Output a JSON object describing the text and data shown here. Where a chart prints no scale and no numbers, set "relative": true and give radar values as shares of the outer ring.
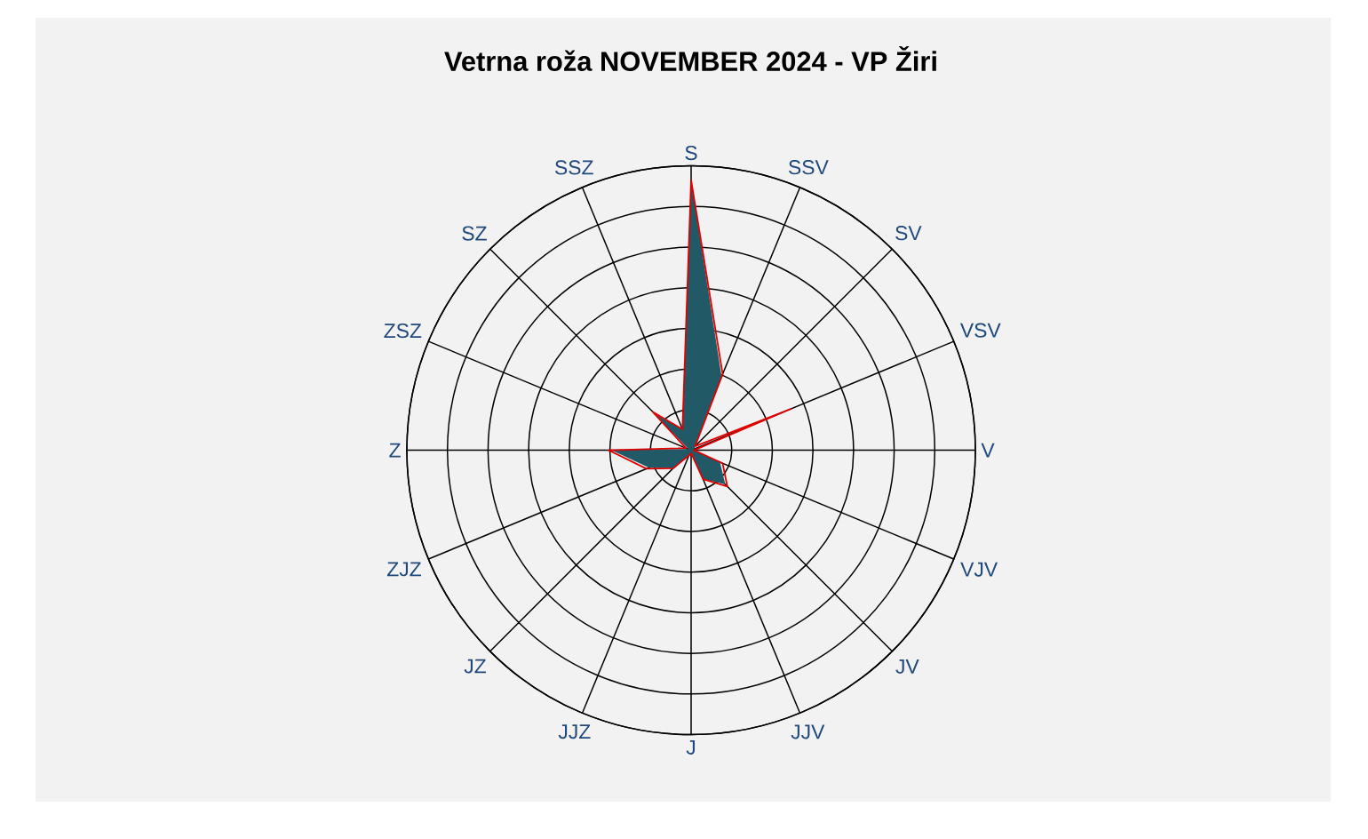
{
  "chart_data": {
    "type": "radar",
    "title": "Vetrna roža NOVEMBER 2024 - VP Žiri",
    "categories": [
      "S",
      "SSV",
      "SV",
      "VSV",
      "V",
      "VJV",
      "JV",
      "JJV",
      "J",
      "JJZ",
      "JZ",
      "ZJZ",
      "Z",
      "ZSZ",
      "SZ",
      "SSZ"
    ],
    "relative": true,
    "grid": true,
    "series": [
      {
        "color": "#215967",
        "values": [
          0.95,
          0.28,
          0.02,
          0.01,
          0.01,
          0.11,
          0.17,
          0.11,
          0.01,
          0.02,
          0.09,
          0.16,
          0.28,
          0.01,
          0.18,
          0.08
        ]
      },
      {
        "color": "#e00000",
        "values": [
          0.95,
          0.29,
          0.02,
          0.38,
          0.01,
          0.12,
          0.18,
          0.11,
          0.01,
          0.02,
          0.09,
          0.17,
          0.29,
          0.02,
          0.19,
          0.08
        ]
      }
    ]
  }
}
